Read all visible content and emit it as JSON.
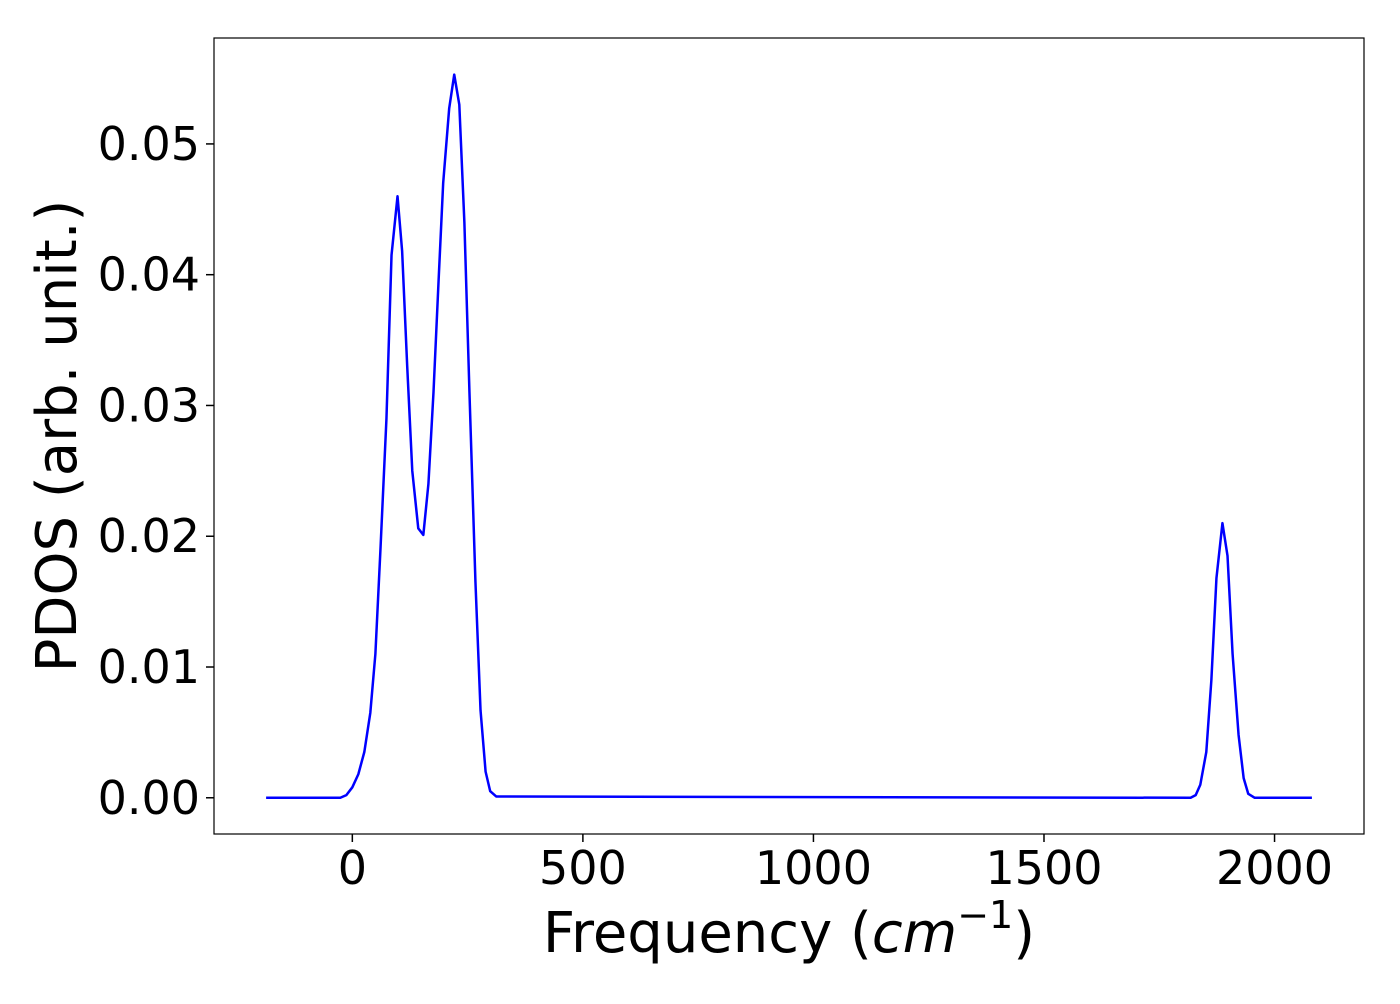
{
  "chart_data": {
    "type": "line",
    "x_label": [
      "Frequency (",
      "cm",
      "−1",
      ")"
    ],
    "y_label": "PDOS (arb. unit.)",
    "x": [
      -187,
      -26,
      -13,
      0,
      13,
      26,
      39,
      50,
      61,
      74,
      85,
      98,
      108,
      119,
      130,
      143,
      154,
      165,
      176,
      187,
      197,
      210,
      221,
      232,
      243,
      254,
      267,
      278,
      289,
      299,
      312,
      1818,
      1829,
      1839,
      1852,
      1863,
      1874,
      1887,
      1898,
      1909,
      1922,
      1933,
      1943,
      1957,
      2081
    ],
    "series": [
      {
        "color": "#0000ff",
        "values": [
          0,
          0,
          0.0002,
          0.0008,
          0.0018,
          0.0035,
          0.0065,
          0.011,
          0.019,
          0.029,
          0.0415,
          0.046,
          0.0418,
          0.033,
          0.025,
          0.0206,
          0.0201,
          0.024,
          0.031,
          0.0395,
          0.047,
          0.0527,
          0.0553,
          0.053,
          0.044,
          0.031,
          0.0165,
          0.0067,
          0.002,
          0.0005,
          0.0001,
          0,
          0.0002,
          0.001,
          0.0035,
          0.009,
          0.0168,
          0.021,
          0.0185,
          0.011,
          0.0048,
          0.0015,
          0.0003,
          0,
          0
        ]
      }
    ],
    "xlim": [
      -300,
      2194
    ],
    "ylim": [
      -0.00277,
      0.0581
    ],
    "xticks": [
      0,
      500,
      1000,
      1500,
      2000
    ],
    "yticks": [
      {
        "value": 0,
        "label": "0.00"
      },
      0.01,
      0.02,
      0.03,
      0.04,
      0.05
    ],
    "grid": false
  }
}
